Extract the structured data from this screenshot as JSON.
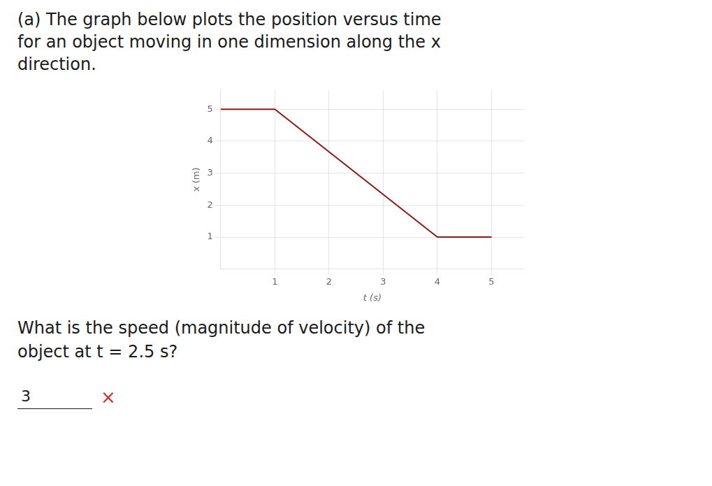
{
  "chart_data": {
    "type": "line",
    "title": [
      "(a) The graph below plots the position versus time",
      "for an object moving in one dimension along the x",
      "direction."
    ],
    "x_label": "t (s)",
    "y_label": "x (m)",
    "x": [
      0,
      1,
      4,
      5
    ],
    "values": [
      5,
      5,
      1,
      1
    ],
    "color": "#8b1a1a",
    "xlim": [
      0,
      5.6
    ],
    "ylim": [
      0,
      5.6
    ],
    "xticks": [
      1,
      2,
      3,
      4,
      5
    ],
    "yticks": [
      1,
      2,
      3,
      4,
      5
    ],
    "grid": true,
    "legend": false,
    "annotations": [
      {
        "text": "What is the speed (magnitude of velocity) of the"
      },
      {
        "text": "object at t = 2.5 s?"
      },
      {
        "text": "3"
      },
      {
        "text": "×",
        "color": "#cc3333"
      }
    ]
  }
}
